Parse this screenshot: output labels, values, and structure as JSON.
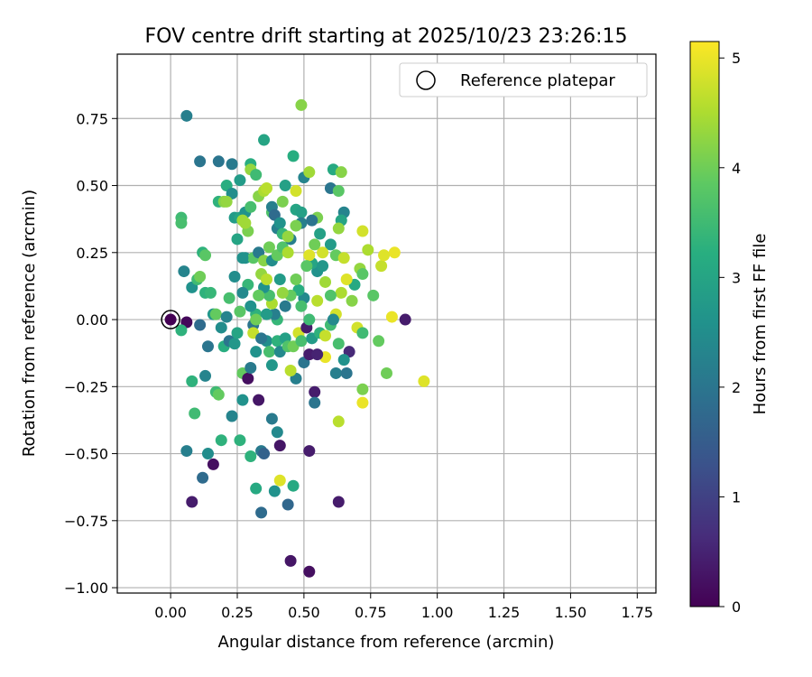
{
  "chart_data": {
    "type": "scatter",
    "title": "FOV centre drift starting at 2025/10/23 23:26:15",
    "xlabel": "Angular distance from reference (arcmin)",
    "ylabel": "Rotation from reference (arcmin)",
    "xlim": [
      -0.2,
      1.82
    ],
    "ylim": [
      -1.02,
      0.99
    ],
    "xticks": [
      "0.00",
      "0.25",
      "0.50",
      "0.75",
      "1.00",
      "1.25",
      "1.50",
      "1.75"
    ],
    "xtick_values": [
      0,
      0.25,
      0.5,
      0.75,
      1.0,
      1.25,
      1.5,
      1.75
    ],
    "yticks": [
      "0.75",
      "0.50",
      "0.25",
      "0.00",
      "−0.25",
      "−0.50",
      "−0.75",
      "−1.00"
    ],
    "ytick_values": [
      0.75,
      0.5,
      0.25,
      0,
      -0.25,
      -0.5,
      -0.75,
      -1.0
    ],
    "grid": true,
    "legend": {
      "position": "top-right",
      "entries": [
        {
          "label": "Reference platepar",
          "marker": "open-circle"
        }
      ]
    },
    "reference_point": {
      "x": 0,
      "y": 0
    },
    "colorbar": {
      "label": "Hours from first FF file",
      "colormap": "viridis",
      "range": [
        0,
        5.15
      ],
      "ticks": [
        "0",
        "1",
        "2",
        "3",
        "4",
        "5"
      ],
      "tick_values": [
        0,
        1,
        2,
        3,
        4,
        5
      ]
    },
    "points": [
      [
        0.0,
        0.0,
        0.0
      ],
      [
        0.06,
        -0.01,
        0.1
      ],
      [
        0.11,
        -0.02,
        1.8
      ],
      [
        0.04,
        -0.04,
        3.3
      ],
      [
        0.05,
        0.18,
        2.3
      ],
      [
        0.08,
        0.12,
        2.6
      ],
      [
        0.1,
        0.15,
        3.5
      ],
      [
        0.11,
        0.16,
        4.0
      ],
      [
        0.13,
        0.1,
        3.3
      ],
      [
        0.15,
        0.1,
        3.4
      ],
      [
        0.04,
        0.38,
        3.5
      ],
      [
        0.04,
        0.36,
        3.6
      ],
      [
        0.06,
        0.76,
        2.2
      ],
      [
        0.11,
        0.59,
        2.0
      ],
      [
        0.18,
        0.59,
        2.0
      ],
      [
        0.23,
        0.58,
        2.1
      ],
      [
        0.21,
        0.5,
        3.2
      ],
      [
        0.23,
        0.47,
        2.5
      ],
      [
        0.26,
        0.52,
        2.8
      ],
      [
        0.18,
        0.44,
        3.3
      ],
      [
        0.2,
        0.44,
        4.2
      ],
      [
        0.21,
        0.44,
        4.3
      ],
      [
        0.24,
        0.38,
        2.8
      ],
      [
        0.26,
        0.38,
        3.0
      ],
      [
        0.25,
        0.3,
        3.0
      ],
      [
        0.29,
        0.33,
        4.1
      ],
      [
        0.28,
        0.36,
        4.4
      ],
      [
        0.28,
        0.4,
        2.6
      ],
      [
        0.3,
        0.58,
        3.2
      ],
      [
        0.3,
        0.56,
        4.3
      ],
      [
        0.32,
        0.54,
        3.5
      ],
      [
        0.33,
        0.46,
        4.2
      ],
      [
        0.35,
        0.48,
        4.5
      ],
      [
        0.36,
        0.49,
        4.6
      ],
      [
        0.35,
        0.67,
        3.0
      ],
      [
        0.38,
        0.4,
        3.7
      ],
      [
        0.38,
        0.42,
        2.2
      ],
      [
        0.39,
        0.39,
        1.8
      ],
      [
        0.4,
        0.34,
        2.2
      ],
      [
        0.41,
        0.36,
        2.6
      ],
      [
        0.42,
        0.32,
        3.4
      ],
      [
        0.42,
        0.44,
        4.1
      ],
      [
        0.43,
        0.5,
        2.9
      ],
      [
        0.46,
        0.61,
        3.2
      ],
      [
        0.47,
        0.41,
        3.0
      ],
      [
        0.47,
        0.48,
        4.8
      ],
      [
        0.49,
        0.4,
        2.9
      ],
      [
        0.49,
        0.36,
        2.2
      ],
      [
        0.5,
        0.53,
        2.3
      ],
      [
        0.52,
        0.55,
        4.4
      ],
      [
        0.49,
        0.8,
        4.2
      ],
      [
        0.55,
        0.38,
        4.1
      ],
      [
        0.53,
        0.37,
        2.0
      ],
      [
        0.56,
        0.32,
        2.9
      ],
      [
        0.6,
        0.49,
        2.0
      ],
      [
        0.61,
        0.56,
        3.1
      ],
      [
        0.63,
        0.48,
        3.8
      ],
      [
        0.64,
        0.55,
        4.2
      ],
      [
        0.65,
        0.4,
        2.3
      ],
      [
        0.64,
        0.37,
        3.0
      ],
      [
        0.63,
        0.34,
        4.3
      ],
      [
        0.6,
        0.28,
        2.8
      ],
      [
        0.12,
        0.25,
        3.3
      ],
      [
        0.13,
        0.24,
        3.8
      ],
      [
        0.16,
        0.02,
        2.7
      ],
      [
        0.17,
        0.02,
        3.9
      ],
      [
        0.19,
        -0.03,
        2.5
      ],
      [
        0.2,
        -0.1,
        3.2
      ],
      [
        0.22,
        -0.08,
        2.0
      ],
      [
        0.24,
        -0.09,
        2.7
      ],
      [
        0.23,
        -0.36,
        2.3
      ],
      [
        0.26,
        -0.45,
        3.3
      ],
      [
        0.27,
        -0.3,
        2.6
      ],
      [
        0.27,
        -0.2,
        3.9
      ],
      [
        0.29,
        -0.22,
        0.2
      ],
      [
        0.3,
        -0.18,
        2.1
      ],
      [
        0.3,
        -0.51,
        3.3
      ],
      [
        0.32,
        -0.63,
        3.1
      ],
      [
        0.34,
        -0.49,
        2.1
      ],
      [
        0.35,
        -0.5,
        1.6
      ],
      [
        0.34,
        -0.72,
        1.8
      ],
      [
        0.33,
        -0.3,
        0.3
      ],
      [
        0.38,
        -0.37,
        2.1
      ],
      [
        0.4,
        -0.42,
        2.4
      ],
      [
        0.41,
        -0.47,
        0.3
      ],
      [
        0.41,
        -0.6,
        4.9
      ],
      [
        0.39,
        -0.64,
        2.6
      ],
      [
        0.44,
        -0.69,
        1.7
      ],
      [
        0.46,
        -0.62,
        3.1
      ],
      [
        0.45,
        -0.9,
        0.3
      ],
      [
        0.52,
        -0.94,
        0.2
      ],
      [
        0.52,
        -0.49,
        0.4
      ],
      [
        0.54,
        -0.27,
        0.4
      ],
      [
        0.54,
        -0.31,
        2.0
      ],
      [
        0.63,
        -0.68,
        0.4
      ],
      [
        0.63,
        -0.38,
        4.6
      ],
      [
        0.58,
        -0.14,
        5.0
      ],
      [
        0.62,
        -0.2,
        2.2
      ],
      [
        0.67,
        -0.12,
        0.6
      ],
      [
        0.72,
        -0.26,
        4.1
      ],
      [
        0.72,
        -0.31,
        5.0
      ],
      [
        0.81,
        -0.2,
        4.0
      ],
      [
        0.95,
        -0.23,
        4.9
      ],
      [
        0.88,
        0.0,
        0.4
      ],
      [
        0.83,
        0.01,
        5.0
      ],
      [
        0.78,
        -0.08,
        3.9
      ],
      [
        0.76,
        0.09,
        3.8
      ],
      [
        0.79,
        0.2,
        4.7
      ],
      [
        0.84,
        0.25,
        5.0
      ],
      [
        0.8,
        0.24,
        4.9
      ],
      [
        0.74,
        0.26,
        4.5
      ],
      [
        0.72,
        0.33,
        4.8
      ],
      [
        0.71,
        0.19,
        4.3
      ],
      [
        0.72,
        0.17,
        3.8
      ],
      [
        0.69,
        0.13,
        3.1
      ],
      [
        0.68,
        0.07,
        4.2
      ],
      [
        0.66,
        0.15,
        4.9
      ],
      [
        0.64,
        0.1,
        4.5
      ],
      [
        0.62,
        0.02,
        4.8
      ],
      [
        0.6,
        0.09,
        3.7
      ],
      [
        0.58,
        0.14,
        4.4
      ],
      [
        0.57,
        0.25,
        4.8
      ],
      [
        0.55,
        0.18,
        2.6
      ],
      [
        0.53,
        0.21,
        3.0
      ],
      [
        0.52,
        0.24,
        4.9
      ],
      [
        0.51,
        0.2,
        3.8
      ],
      [
        0.5,
        0.08,
        2.4
      ],
      [
        0.49,
        0.05,
        3.6
      ],
      [
        0.48,
        0.11,
        3.2
      ],
      [
        0.47,
        0.15,
        4.0
      ],
      [
        0.45,
        0.09,
        3.9
      ],
      [
        0.43,
        0.05,
        2.1
      ],
      [
        0.42,
        0.1,
        4.3
      ],
      [
        0.41,
        0.15,
        2.8
      ],
      [
        0.4,
        0.0,
        3.4
      ],
      [
        0.39,
        0.02,
        2.2
      ],
      [
        0.38,
        0.06,
        4.5
      ],
      [
        0.37,
        0.09,
        3.6
      ],
      [
        0.35,
        0.12,
        2.6
      ],
      [
        0.34,
        0.17,
        4.3
      ],
      [
        0.33,
        0.09,
        3.9
      ],
      [
        0.32,
        0.02,
        3.3
      ],
      [
        0.31,
        -0.02,
        2.0
      ],
      [
        0.3,
        0.05,
        2.6
      ],
      [
        0.29,
        0.13,
        3.4
      ],
      [
        0.27,
        0.1,
        2.4
      ],
      [
        0.26,
        0.03,
        3.8
      ],
      [
        0.25,
        -0.05,
        3.0
      ],
      [
        0.24,
        0.16,
        2.5
      ],
      [
        0.22,
        0.08,
        3.6
      ],
      [
        0.21,
        0.01,
        2.3
      ],
      [
        0.28,
        0.23,
        2.6
      ],
      [
        0.31,
        0.23,
        3.8
      ],
      [
        0.33,
        0.25,
        2.1
      ],
      [
        0.35,
        0.22,
        4.2
      ],
      [
        0.37,
        0.27,
        4.0
      ],
      [
        0.38,
        0.22,
        2.5
      ],
      [
        0.4,
        0.24,
        3.9
      ],
      [
        0.42,
        0.27,
        3.7
      ],
      [
        0.44,
        0.25,
        4.5
      ],
      [
        0.45,
        0.3,
        2.2
      ],
      [
        0.36,
        -0.08,
        2.5
      ],
      [
        0.37,
        -0.12,
        3.6
      ],
      [
        0.38,
        -0.17,
        2.7
      ],
      [
        0.4,
        -0.08,
        3.3
      ],
      [
        0.41,
        -0.12,
        2.4
      ],
      [
        0.43,
        -0.07,
        2.9
      ],
      [
        0.44,
        -0.1,
        3.7
      ],
      [
        0.46,
        -0.1,
        4.0
      ],
      [
        0.47,
        -0.22,
        2.2
      ],
      [
        0.45,
        -0.19,
        4.6
      ],
      [
        0.48,
        -0.05,
        4.8
      ],
      [
        0.49,
        -0.08,
        3.6
      ],
      [
        0.5,
        -0.16,
        2.0
      ],
      [
        0.51,
        -0.03,
        0.4
      ],
      [
        0.52,
        -0.13,
        0.4
      ],
      [
        0.53,
        -0.07,
        2.8
      ],
      [
        0.55,
        -0.13,
        0.5
      ],
      [
        0.56,
        -0.05,
        3.3
      ],
      [
        0.58,
        -0.06,
        4.7
      ],
      [
        0.6,
        -0.02,
        3.5
      ],
      [
        0.61,
        0.0,
        2.4
      ],
      [
        0.63,
        -0.09,
        3.6
      ],
      [
        0.65,
        -0.15,
        2.6
      ],
      [
        0.66,
        -0.2,
        2.0
      ],
      [
        0.7,
        -0.03,
        4.8
      ],
      [
        0.72,
        -0.05,
        3.5
      ],
      [
        0.14,
        -0.1,
        2.0
      ],
      [
        0.13,
        -0.21,
        2.3
      ],
      [
        0.08,
        -0.23,
        3.3
      ],
      [
        0.09,
        -0.35,
        3.5
      ],
      [
        0.06,
        -0.49,
        2.2
      ],
      [
        0.12,
        -0.59,
        1.8
      ],
      [
        0.08,
        -0.68,
        0.4
      ],
      [
        0.16,
        -0.54,
        0.2
      ],
      [
        0.14,
        -0.5,
        2.5
      ],
      [
        0.19,
        -0.45,
        3.3
      ],
      [
        0.17,
        -0.27,
        3.5
      ],
      [
        0.18,
        -0.28,
        3.9
      ],
      [
        0.31,
        -0.05,
        4.7
      ],
      [
        0.32,
        -0.12,
        2.6
      ],
      [
        0.34,
        -0.07,
        2.0
      ],
      [
        0.36,
        0.02,
        2.8
      ],
      [
        0.3,
        0.42,
        3.6
      ],
      [
        0.27,
        0.37,
        4.4
      ],
      [
        0.47,
        0.35,
        4.1
      ],
      [
        0.54,
        0.28,
        4.0
      ],
      [
        0.57,
        0.2,
        2.7
      ],
      [
        0.62,
        0.24,
        3.9
      ],
      [
        0.65,
        0.23,
        4.7
      ],
      [
        0.52,
        0.0,
        3.5
      ],
      [
        0.55,
        0.07,
        4.6
      ],
      [
        0.36,
        0.15,
        4.6
      ],
      [
        0.44,
        0.31,
        4.3
      ],
      [
        0.27,
        0.23,
        2.6
      ],
      [
        0.32,
        0.0,
        4.0
      ]
    ]
  }
}
